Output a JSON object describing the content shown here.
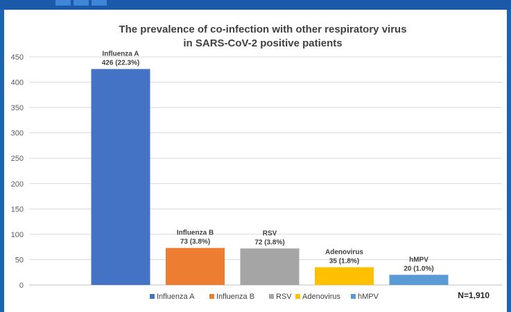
{
  "chart_data": {
    "type": "bar",
    "title_lines": [
      "The prevalence of co-infection with other respiratory virus",
      "in SARS-CoV-2 positive patients"
    ],
    "categories": [
      "Influenza A",
      "Influenza B",
      "RSV",
      "Adenovirus",
      "hMPV"
    ],
    "values": [
      426,
      73,
      72,
      35,
      20
    ],
    "data_labels": [
      "426 (22.3%)",
      "73 (3.8%)",
      "72 (3.8%)",
      "35 (1.8%)",
      "20 (1.0%)"
    ],
    "colors": [
      "#4472c4",
      "#ed7d31",
      "#a5a5a5",
      "#ffc000",
      "#5b9bd5"
    ],
    "ylim": [
      0,
      450
    ],
    "yticks": [
      0,
      50,
      100,
      150,
      200,
      250,
      300,
      350,
      400,
      450
    ],
    "grid": true,
    "legend_position": "bottom",
    "note": "N=1,910"
  }
}
